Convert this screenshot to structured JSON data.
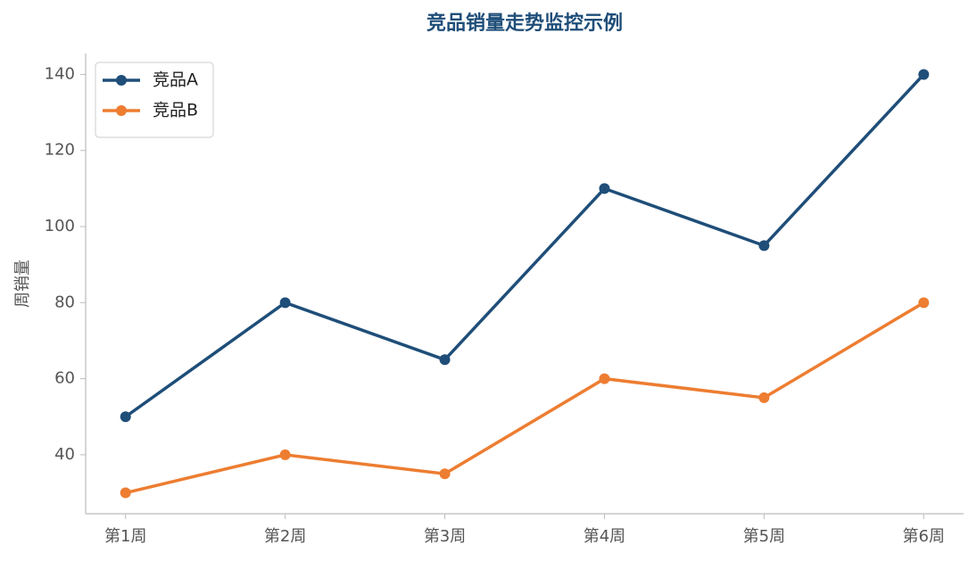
{
  "chart_data": {
    "type": "line",
    "title": "竞品销量走势监控示例",
    "y_label": "周销量",
    "categories": [
      "第1周",
      "第2周",
      "第3周",
      "第4周",
      "第5周",
      "第6周"
    ],
    "series": [
      {
        "name": "竞品A",
        "color": "#1f4e79",
        "values": [
          50,
          80,
          65,
          110,
          95,
          140
        ]
      },
      {
        "name": "竞品B",
        "color": "#ed7d31",
        "values": [
          30,
          40,
          35,
          60,
          55,
          80
        ]
      }
    ],
    "ylim": [
      24.5,
      145.5
    ],
    "yticks": [
      40,
      60,
      80,
      100,
      120,
      140
    ],
    "grid": false,
    "legend": "upper-left"
  }
}
